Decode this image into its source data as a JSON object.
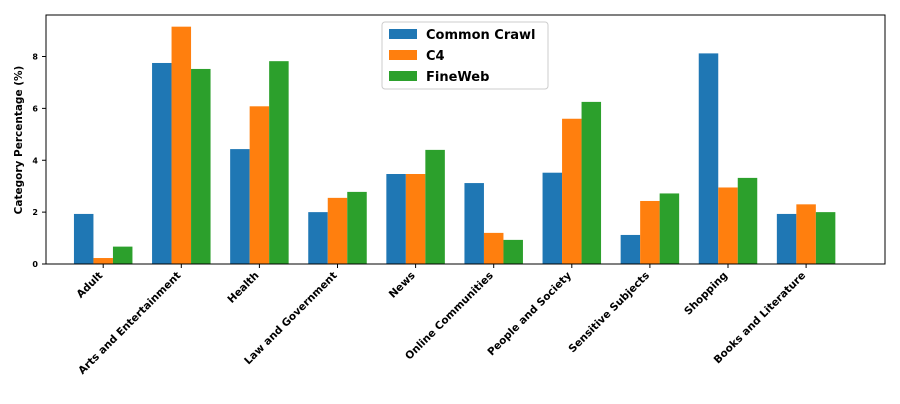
{
  "chart_data": {
    "type": "bar",
    "title": "",
    "xlabel": "",
    "ylabel": "Category Percentage (%)",
    "ylim": [
      0,
      9.6
    ],
    "yticks": [
      0,
      2,
      4,
      6,
      8
    ],
    "categories": [
      "Adult",
      "Arts and Entertainment",
      "Health",
      "Law and Government",
      "News",
      "Online Communities",
      "People and Society",
      "Sensitive Subjects",
      "Shopping",
      "Books and Literature"
    ],
    "series": [
      {
        "name": "Common Crawl",
        "color": "#1f77b4",
        "values": [
          1.93,
          7.75,
          4.43,
          2.0,
          3.47,
          3.12,
          3.52,
          1.12,
          8.12,
          1.93
        ]
      },
      {
        "name": "C4",
        "color": "#ff7f0e",
        "values": [
          0.23,
          9.15,
          6.08,
          2.55,
          3.47,
          1.2,
          5.6,
          2.43,
          2.95,
          2.3
        ]
      },
      {
        "name": "FineWeb",
        "color": "#2ca02c",
        "values": [
          0.67,
          7.52,
          7.82,
          2.78,
          4.4,
          0.93,
          6.25,
          2.72,
          3.32,
          2.0
        ]
      }
    ],
    "legend_position": "top-center",
    "grid": false
  }
}
